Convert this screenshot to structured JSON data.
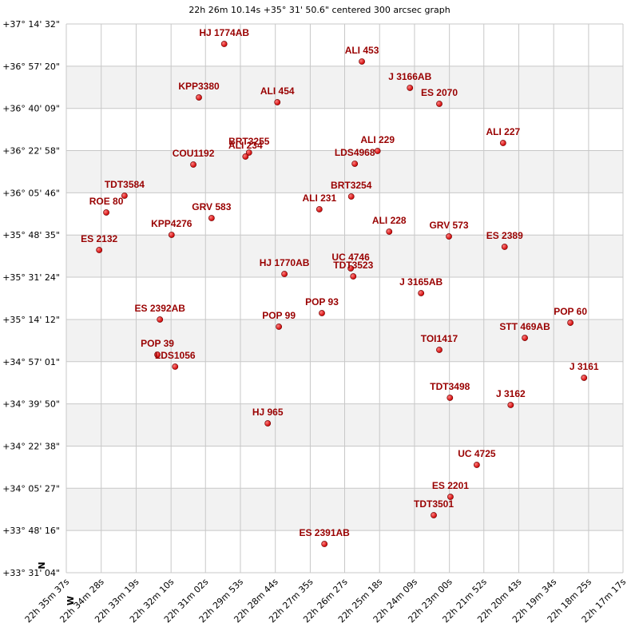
{
  "chart_data": {
    "type": "scatter",
    "title": "22h 26m 10.14s +35° 31' 50.6\" centered 300 arcsec graph",
    "compass": [
      "N",
      "W"
    ],
    "color": "#cc0000",
    "label_color": "#990000",
    "grid": true,
    "band_color": "#f2f2f2",
    "xlim": [
      81337,
      80237
    ],
    "ylim": [
      120664,
      134072
    ],
    "xticks": [
      {
        "value": 81337,
        "label": "22h 35m 37s"
      },
      {
        "value": 81268,
        "label": "22h 34m 28s"
      },
      {
        "value": 81199,
        "label": "22h 33m 19s"
      },
      {
        "value": 81130,
        "label": "22h 32m 10s"
      },
      {
        "value": 81062,
        "label": "22h 31m 02s"
      },
      {
        "value": 80993,
        "label": "22h 29m 53s"
      },
      {
        "value": 80924,
        "label": "22h 28m 44s"
      },
      {
        "value": 80855,
        "label": "22h 27m 35s"
      },
      {
        "value": 80787,
        "label": "22h 26m 27s"
      },
      {
        "value": 80718,
        "label": "22h 25m 18s"
      },
      {
        "value": 80649,
        "label": "22h 24m 09s"
      },
      {
        "value": 80580,
        "label": "22h 23m 00s"
      },
      {
        "value": 80512,
        "label": "22h 21m 52s"
      },
      {
        "value": 80443,
        "label": "22h 20m 43s"
      },
      {
        "value": 80374,
        "label": "22h 19m 34s"
      },
      {
        "value": 80305,
        "label": "22h 18m 25s"
      },
      {
        "value": 80237,
        "label": "22h 17m 17s"
      }
    ],
    "yticks": [
      {
        "value": 134072,
        "label": "+37° 14' 32\""
      },
      {
        "value": 133040,
        "label": "+36° 57' 20\""
      },
      {
        "value": 132009,
        "label": "+36° 40' 09\""
      },
      {
        "value": 130978,
        "label": "+36° 22' 58\""
      },
      {
        "value": 129946,
        "label": "+36° 05' 46\""
      },
      {
        "value": 128915,
        "label": "+35° 48' 35\""
      },
      {
        "value": 127884,
        "label": "+35° 31' 24\""
      },
      {
        "value": 126852,
        "label": "+35° 14' 12\""
      },
      {
        "value": 125821,
        "label": "+34° 57' 01\""
      },
      {
        "value": 124790,
        "label": "+34° 39' 50\""
      },
      {
        "value": 123758,
        "label": "+34° 22' 38\""
      },
      {
        "value": 122727,
        "label": "+34° 05' 27\""
      },
      {
        "value": 121696,
        "label": "+33° 48' 16\""
      },
      {
        "value": 120664,
        "label": "+33° 31' 04\""
      }
    ],
    "labels": [
      "HJ 1774AB",
      "ALI 453",
      "J 3166AB",
      "ES 2070",
      "KPP3380",
      "ALI 454",
      "ALI 227",
      "BRT3255",
      "ALI 234",
      "ALI 229",
      "LDS4968",
      "COU1192",
      "TDT3584",
      "ROE 80",
      "BRT3254",
      "ALI 231",
      "GRV 583",
      "ALI 228",
      "GRV 573",
      "KPP4276",
      "ES 2389",
      "ES 2132",
      "HJ 1770AB",
      "UC 4746",
      "TDT3523",
      "J 3165AB",
      "POP 93",
      "ES 2392AB",
      "POP 99",
      "POP 60",
      "STT 469AB",
      "POP 39",
      "LDS1056",
      "TOI1417",
      "J 3161",
      "TDT3498",
      "J 3162",
      "HJ 965",
      "UC 4725",
      "ES 2201",
      "TDT3501",
      "ES 2391AB"
    ],
    "x": [
      81025,
      80753,
      80658,
      80600,
      81075,
      80920,
      80474,
      80976,
      80983,
      80722,
      80767,
      81086,
      81222,
      81258,
      80774,
      80837,
      81050,
      80699,
      80581,
      81129,
      80471,
      81272,
      80906,
      80775,
      80770,
      80636,
      80832,
      81152,
      80917,
      80341,
      80431,
      81157,
      81122,
      80600,
      80314,
      80579,
      80459,
      80939,
      80526,
      80578,
      80611,
      80827
    ],
    "values": [
      133584,
      133155,
      132511,
      132120,
      132276,
      132159,
      131164,
      130930,
      130832,
      130969,
      130657,
      130637,
      129876,
      129466,
      129856,
      129544,
      129329,
      128998,
      128880,
      128920,
      128627,
      128549,
      127963,
      128100,
      127904,
      127495,
      127007,
      126851,
      126675,
      126772,
      126401,
      125992,
      125699,
      126109,
      125426,
      124938,
      124762,
      124313,
      123299,
      122518,
      122069,
      121366
    ]
  }
}
